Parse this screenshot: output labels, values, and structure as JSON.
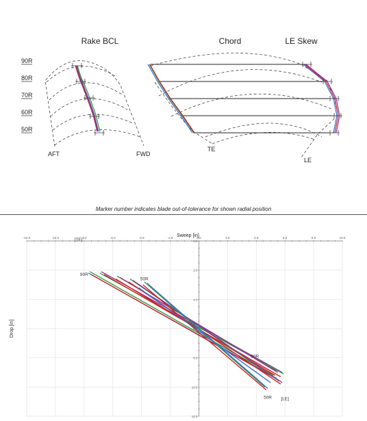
{
  "top_panel": {
    "titles": {
      "rake": "Rake BCL",
      "chord": "Chord",
      "skew": "LE Skew"
    },
    "radial_labels": [
      "90R",
      "80R",
      "70R",
      "60R",
      "50R"
    ],
    "rake_labels": {
      "aft": "AFT",
      "fwd": "FWD"
    },
    "chord_labels": {
      "te": "TE",
      "le": "LE"
    },
    "colors": {
      "nominal": "#333333",
      "measured_red": "#cc2222",
      "measured_green": "#2e9a3c",
      "measured_blue": "#3a6fd8",
      "measured_purple": "#9a2f9a",
      "tolerance": "#444444"
    }
  },
  "caption": "Marker number indicates blade out-of-tolerance for shown radial position",
  "chart_data": {
    "type": "line",
    "title": "",
    "xlabel": "Sweep [in]",
    "ylabel": "Drop [in]",
    "xlim": [
      -12.0,
      10.0
    ],
    "ylim": [
      0.0,
      12.0
    ],
    "y_inverted": true,
    "xticks": [
      "-12.0",
      "-10.0",
      "-8.0",
      "-6.0",
      "-4.0",
      "-2.0",
      "0.0",
      "2.0",
      "4.0",
      "6.0",
      "8.0",
      "10.0"
    ],
    "yticks": [
      "0.0",
      "2.0",
      "4.0",
      "6.0",
      "8.0",
      "10.0",
      "12.0"
    ],
    "grid": true,
    "series": [
      {
        "color": "#2e9a3c",
        "x": [
          -7.6,
          5.2
        ],
        "y": [
          2.1,
          9.2
        ]
      },
      {
        "color": "#3a6fd8",
        "x": [
          -7.7,
          5.4
        ],
        "y": [
          2.2,
          9.4
        ]
      },
      {
        "color": "#cc2222",
        "x": [
          -7.5,
          5.5
        ],
        "y": [
          2.3,
          9.5
        ]
      },
      {
        "color": "#9a2f9a",
        "x": [
          -6.8,
          5.8
        ],
        "y": [
          2.1,
          9.0
        ]
      },
      {
        "color": "#2e9a3c",
        "x": [
          -6.9,
          5.9
        ],
        "y": [
          2.2,
          9.1
        ]
      },
      {
        "color": "#cc2222",
        "x": [
          -6.6,
          5.7
        ],
        "y": [
          2.3,
          9.3
        ]
      },
      {
        "color": "#2e9a3c",
        "x": [
          -5.7,
          5.4
        ],
        "y": [
          2.4,
          8.9
        ]
      },
      {
        "color": "#9a2f9a",
        "x": [
          -5.5,
          5.5
        ],
        "y": [
          2.5,
          9.0
        ]
      },
      {
        "color": "#cc2222",
        "x": [
          -5.8,
          5.3
        ],
        "y": [
          2.6,
          9.2
        ]
      },
      {
        "color": "#2e9a3c",
        "x": [
          -4.8,
          5.6
        ],
        "y": [
          2.6,
          9.6
        ]
      },
      {
        "color": "#9a2f9a",
        "x": [
          -4.6,
          5.8
        ],
        "y": [
          2.7,
          9.7
        ]
      },
      {
        "color": "#cc2222",
        "x": [
          -4.9,
          5.7
        ],
        "y": [
          2.8,
          9.8
        ]
      },
      {
        "color": "#2e9a3c",
        "x": [
          -3.8,
          4.6
        ],
        "y": [
          2.8,
          10.0
        ]
      },
      {
        "color": "#3a6fd8",
        "x": [
          -3.6,
          4.8
        ],
        "y": [
          2.9,
          10.1
        ]
      },
      {
        "color": "#cc2222",
        "x": [
          -3.9,
          4.7
        ],
        "y": [
          3.0,
          10.2
        ]
      },
      {
        "color": "#3a6fd8",
        "x": [
          -4.2,
          5.0
        ],
        "y": [
          3.2,
          9.7
        ]
      }
    ],
    "annotations": [
      {
        "text": "[TE]",
        "x": -8.4,
        "y": 0.0
      },
      {
        "text": "90R",
        "x": -8.0,
        "y": 2.4
      },
      {
        "text": "50R",
        "x": -3.8,
        "y": 2.7
      },
      {
        "text": "90R",
        "x": 3.9,
        "y": 8.0
      },
      {
        "text": "50R",
        "x": 4.8,
        "y": 10.8
      },
      {
        "text": "[LE]",
        "x": 6.0,
        "y": 10.9
      }
    ]
  }
}
